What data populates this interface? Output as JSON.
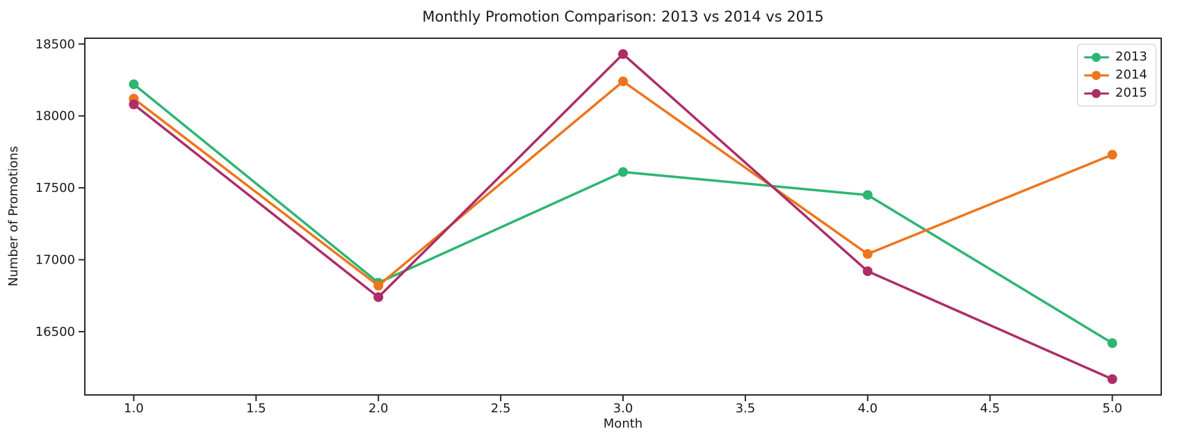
{
  "chart_data": {
    "type": "line",
    "title": "Monthly Promotion Comparison: 2013 vs 2014 vs 2015",
    "xlabel": "Month",
    "ylabel": "Number of Promotions",
    "x": [
      1.0,
      2.0,
      3.0,
      4.0,
      5.0
    ],
    "series": [
      {
        "name": "2013",
        "color": "#2eb573",
        "values": [
          18220,
          16840,
          17610,
          17450,
          16420
        ]
      },
      {
        "name": "2014",
        "color": "#ee751b",
        "values": [
          18120,
          16820,
          18240,
          17040,
          17730
        ]
      },
      {
        "name": "2015",
        "color": "#ad2d68",
        "values": [
          18080,
          16740,
          18430,
          16920,
          16170
        ]
      }
    ],
    "xlim": [
      0.8,
      5.2
    ],
    "ylim": [
      16060,
      18540
    ],
    "xticks": {
      "values": [
        1.0,
        1.5,
        2.0,
        2.5,
        3.0,
        3.5,
        4.0,
        4.5,
        5.0
      ],
      "labels": [
        "1.0",
        "1.5",
        "2.0",
        "2.5",
        "3.0",
        "3.5",
        "4.0",
        "4.5",
        "5.0"
      ]
    },
    "yticks": {
      "values": [
        16500,
        17000,
        17500,
        18000,
        18500
      ],
      "labels": [
        "16500",
        "17000",
        "17500",
        "18000",
        "18500"
      ]
    },
    "grid": false,
    "legend": {
      "position": "upper right",
      "entries": [
        "2013",
        "2014",
        "2015"
      ]
    },
    "marker": "circle"
  },
  "style": {
    "background": "#ffffff",
    "text_color": "#1a1a1a",
    "spine_color": "#2a2a2a",
    "legend_border": "#cccccc",
    "line_width": 3.5,
    "marker_radius": 7
  }
}
